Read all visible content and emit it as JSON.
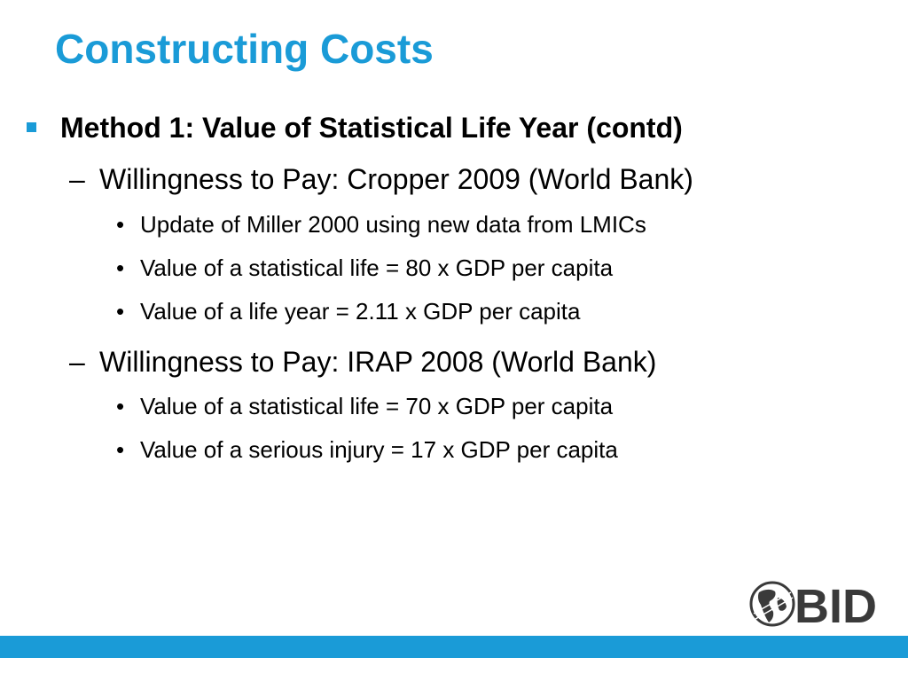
{
  "slide": {
    "title": "Constructing Costs",
    "level1": {
      "text": "Method 1: Value of Statistical Life Year (contd)"
    },
    "sections": [
      {
        "heading": "Willingness to Pay: Cropper 2009 (World Bank)",
        "bullets": [
          "Update of Miller 2000 using new data from LMICs",
          "Value of a statistical life = 80 x GDP per capita",
          "Value of a life year = 2.11 x GDP per capita"
        ]
      },
      {
        "heading": "Willingness to Pay: IRAP 2008 (World Bank)",
        "bullets": [
          "Value of a statistical life = 70 x GDP per capita",
          "Value of a serious injury = 17 x GDP per capita"
        ]
      }
    ]
  },
  "logo": {
    "text": "BID",
    "icon": "globe-icon"
  },
  "colors": {
    "accent": "#1a9bd7",
    "logo_gray": "#3a3a3a"
  }
}
